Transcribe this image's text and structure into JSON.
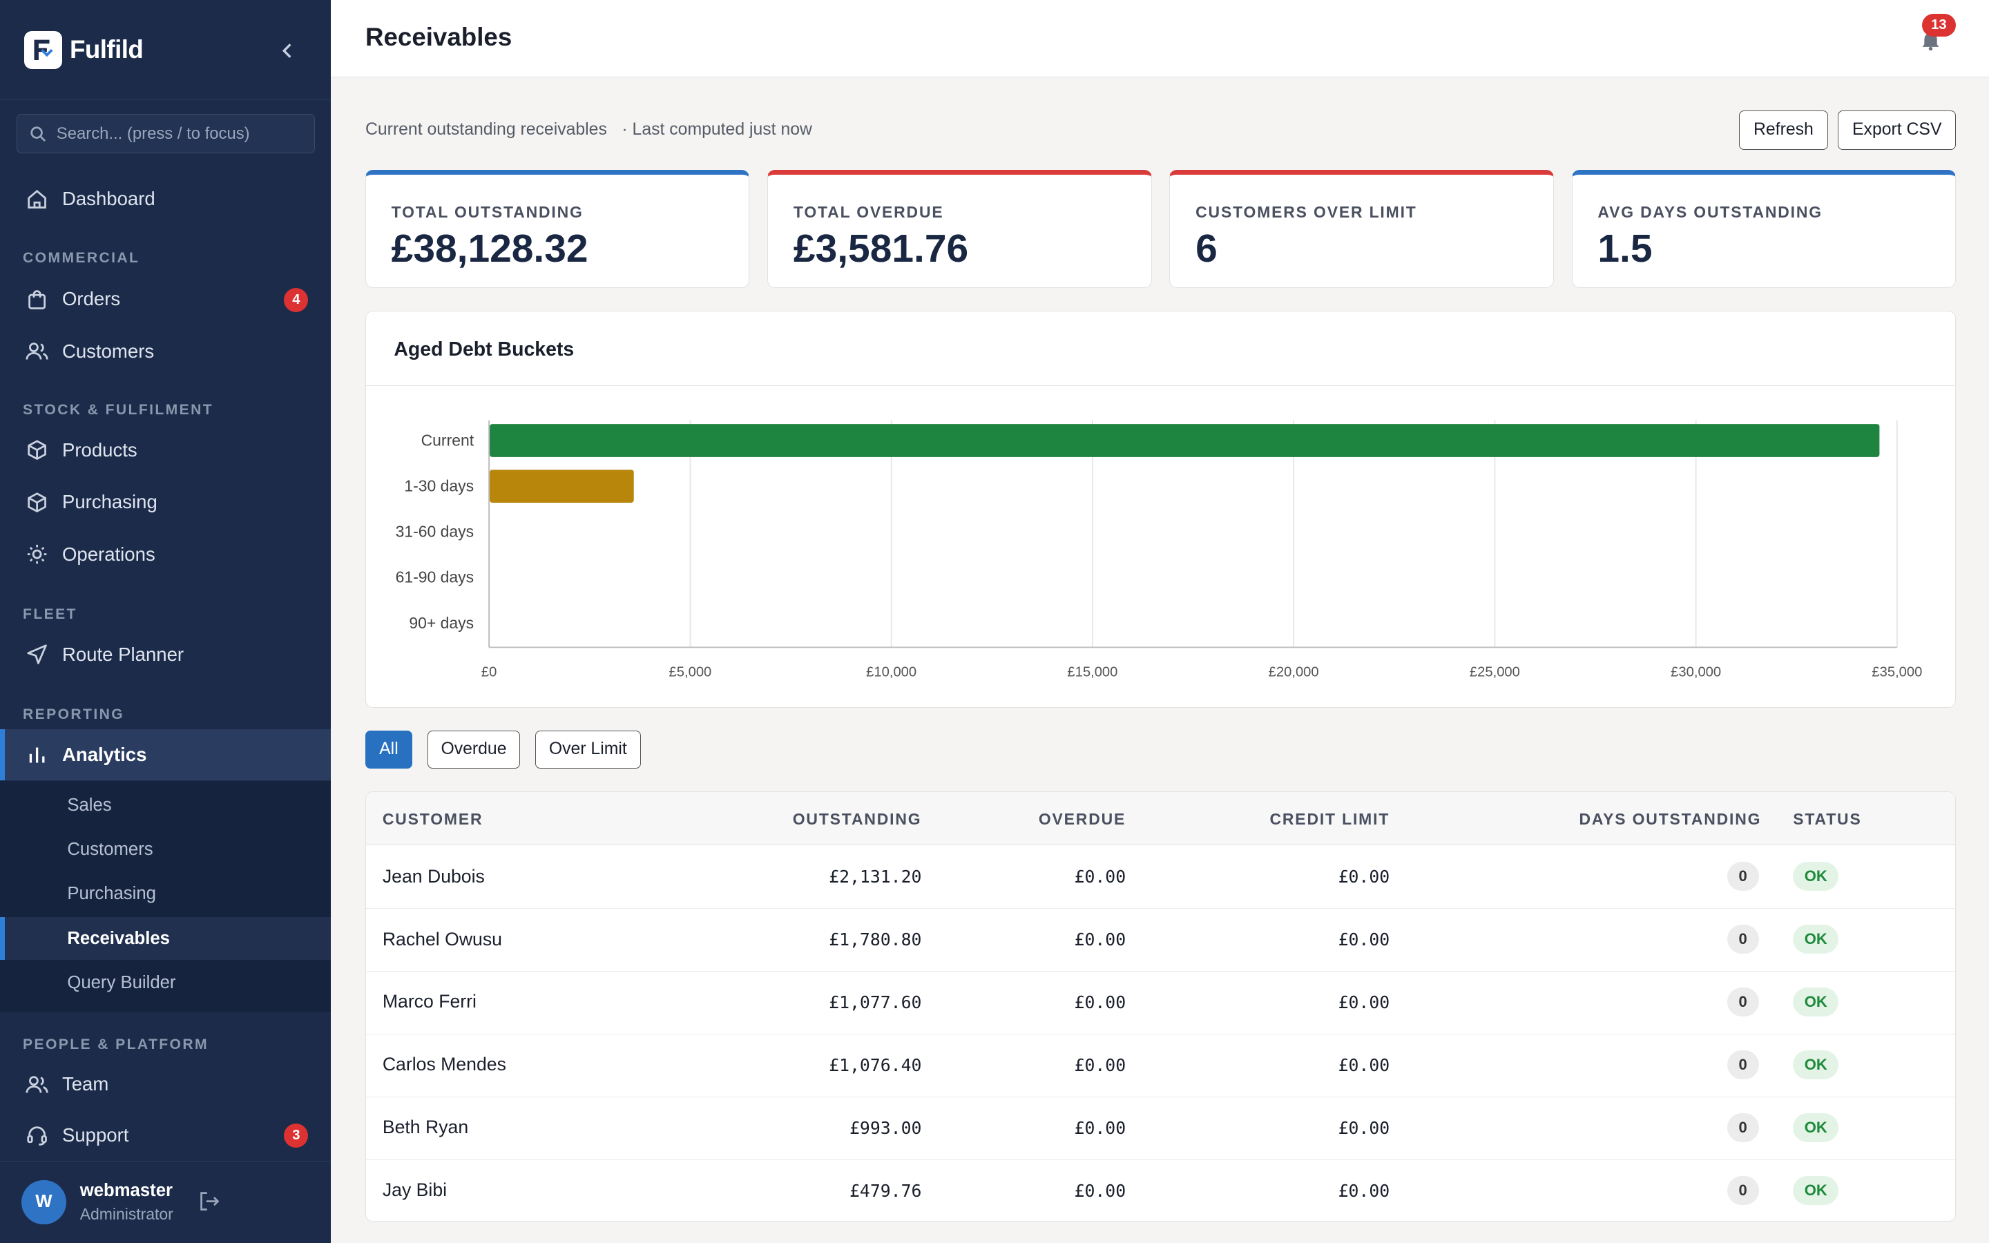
{
  "app": {
    "name": "Fulfild",
    "brand_color": "#1c2b4a",
    "accent_color": "#2f7fd8"
  },
  "sidebar": {
    "search_placeholder": "Search... (press / to focus)",
    "dashboard": {
      "label": "Dashboard",
      "icon": "home-icon"
    },
    "sections": {
      "commercial": "COMMERCIAL",
      "stock": "STOCK & FULFILMENT",
      "fleet": "FLEET",
      "reporting": "REPORTING",
      "people": "PEOPLE & PLATFORM"
    },
    "items": {
      "orders": {
        "label": "Orders",
        "badge": "4",
        "icon": "shopping-bag-icon"
      },
      "customers": {
        "label": "Customers",
        "icon": "users-icon"
      },
      "products": {
        "label": "Products",
        "icon": "box-icon"
      },
      "purchasing": {
        "label": "Purchasing",
        "icon": "box-icon"
      },
      "operations": {
        "label": "Operations",
        "icon": "sun-icon"
      },
      "route_planner": {
        "label": "Route Planner",
        "icon": "navigation-icon"
      },
      "analytics": {
        "label": "Analytics",
        "icon": "bar-chart-icon"
      },
      "team": {
        "label": "Team",
        "icon": "users-icon"
      },
      "support": {
        "label": "Support",
        "badge": "3",
        "icon": "headset-icon"
      }
    },
    "analytics_sub": [
      "Sales",
      "Customers",
      "Purchasing",
      "Receivables",
      "Query Builder"
    ],
    "user": {
      "initial": "W",
      "name": "webmaster",
      "role": "Administrator"
    }
  },
  "header": {
    "title": "Receivables",
    "notifications": "13"
  },
  "summary": {
    "text": "Current outstanding receivables",
    "computed": "· Last computed just now",
    "refresh_label": "Refresh",
    "export_label": "Export CSV"
  },
  "kpis": [
    {
      "label": "TOTAL OUTSTANDING",
      "value": "£38,128.32",
      "color": "#2f73c4"
    },
    {
      "label": "TOTAL OVERDUE",
      "value": "£3,581.76",
      "color": "#d93a3a"
    },
    {
      "label": "CUSTOMERS OVER LIMIT",
      "value": "6",
      "color": "#d93a3a"
    },
    {
      "label": "AVG DAYS OUTSTANDING",
      "value": "1.5",
      "color": "#2f73c4"
    }
  ],
  "chart": {
    "title": "Aged Debt Buckets"
  },
  "chart_data": {
    "type": "bar",
    "orientation": "horizontal",
    "categories": [
      "Current",
      "1-30 days",
      "31-60 days",
      "61-90 days",
      "90+ days"
    ],
    "values": [
      34546.56,
      3581.76,
      0,
      0,
      0
    ],
    "colors": [
      "#1e8540",
      "#b8860b",
      "#1e8540",
      "#1e8540",
      "#1e8540"
    ],
    "xlim": [
      0,
      35000
    ],
    "xticks": [
      0,
      5000,
      10000,
      15000,
      20000,
      25000,
      30000,
      35000
    ],
    "xtick_labels": [
      "£0",
      "£5,000",
      "£10,000",
      "£15,000",
      "£20,000",
      "£25,000",
      "£30,000",
      "£35,000"
    ],
    "grid": true,
    "legend": "none"
  },
  "filters": [
    "All",
    "Overdue",
    "Over Limit"
  ],
  "table": {
    "headers": [
      "CUSTOMER",
      "OUTSTANDING",
      "OVERDUE",
      "CREDIT LIMIT",
      "DAYS OUTSTANDING",
      "STATUS"
    ],
    "rows": [
      {
        "customer": "Jean Dubois",
        "outstanding": "£2,131.20",
        "overdue": "£0.00",
        "limit": "£0.00",
        "days": "0",
        "status": "OK"
      },
      {
        "customer": "Rachel Owusu",
        "outstanding": "£1,780.80",
        "overdue": "£0.00",
        "limit": "£0.00",
        "days": "0",
        "status": "OK"
      },
      {
        "customer": "Marco Ferri",
        "outstanding": "£1,077.60",
        "overdue": "£0.00",
        "limit": "£0.00",
        "days": "0",
        "status": "OK"
      },
      {
        "customer": "Carlos Mendes",
        "outstanding": "£1,076.40",
        "overdue": "£0.00",
        "limit": "£0.00",
        "days": "0",
        "status": "OK"
      },
      {
        "customer": "Beth Ryan",
        "outstanding": "£993.00",
        "overdue": "£0.00",
        "limit": "£0.00",
        "days": "0",
        "status": "OK"
      },
      {
        "customer": "Jay Bibi",
        "outstanding": "£479.76",
        "overdue": "£0.00",
        "limit": "£0.00",
        "days": "0",
        "status": "OK"
      }
    ]
  }
}
